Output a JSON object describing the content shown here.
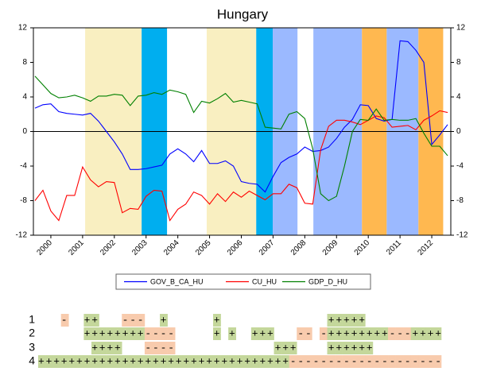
{
  "chart_data": {
    "type": "line",
    "title": "Hungary",
    "x": [
      1999.5,
      1999.75,
      2000,
      2000.25,
      2000.5,
      2000.75,
      2001,
      2001.25,
      2001.5,
      2001.75,
      2002,
      2002.25,
      2002.5,
      2002.75,
      2003,
      2003.25,
      2003.5,
      2003.75,
      2004,
      2004.25,
      2004.5,
      2004.75,
      2005,
      2005.25,
      2005.5,
      2005.75,
      2006,
      2006.25,
      2006.5,
      2006.75,
      2007,
      2007.25,
      2007.5,
      2007.75,
      2008,
      2008.25,
      2008.5,
      2008.75,
      2009,
      2009.25,
      2009.5,
      2009.75,
      2010,
      2010.25,
      2010.5,
      2010.75,
      2011,
      2011.25,
      2011.5,
      2011.75,
      2012,
      2012.25,
      2012.5
    ],
    "series": [
      {
        "name": "GOV_B_CA_HU",
        "color": "#0000ff",
        "values": [
          2.7,
          3.1,
          3.2,
          2.3,
          2.1,
          2.0,
          1.9,
          2.1,
          1.2,
          0.0,
          -1.2,
          -2.6,
          -4.4,
          -4.4,
          -4.3,
          -4.1,
          -3.9,
          -2.6,
          -2.0,
          -2.6,
          -3.5,
          -2.2,
          -3.7,
          -3.7,
          -3.4,
          -4.0,
          -5.8,
          -6.0,
          -6.1,
          -7.0,
          -5.2,
          -3.6,
          -3.0,
          -2.6,
          -1.8,
          -2.3,
          -2.2,
          -1.8,
          -0.8,
          0.5,
          1.4,
          3.1,
          3.0,
          1.5,
          1.2,
          1.4,
          10.5,
          10.4,
          9.4,
          8.0,
          -1.5,
          -0.4,
          0.8
        ]
      },
      {
        "name": "CU_HU",
        "color": "#ff0000",
        "values": [
          -8.0,
          -6.8,
          -9.2,
          -10.3,
          -7.4,
          -7.4,
          -4.1,
          -5.6,
          -6.4,
          -5.8,
          -5.9,
          -9.4,
          -8.9,
          -9.0,
          -7.5,
          -6.8,
          -6.9,
          -10.3,
          -9.0,
          -8.4,
          -7.0,
          -7.4,
          -8.4,
          -7.2,
          -8.1,
          -7.0,
          -7.6,
          -6.9,
          -7.4,
          -7.9,
          -7.2,
          -7.2,
          -6.1,
          -6.5,
          -8.3,
          -8.4,
          -2.1,
          0.6,
          1.3,
          1.3,
          1.1,
          0.8,
          1.3,
          1.8,
          1.6,
          0.5,
          0.6,
          0.7,
          0.2,
          1.3,
          1.8,
          2.4,
          2.2
        ]
      },
      {
        "name": "GDP_D_HU",
        "color": "#008000",
        "values": [
          6.4,
          5.4,
          4.4,
          3.9,
          4.0,
          4.2,
          3.9,
          3.5,
          4.1,
          4.1,
          4.3,
          4.2,
          3.0,
          4.1,
          4.2,
          4.5,
          4.3,
          4.8,
          4.6,
          4.3,
          2.2,
          3.5,
          3.3,
          3.8,
          4.4,
          3.4,
          3.6,
          3.4,
          3.2,
          0.5,
          0.4,
          0.3,
          2.0,
          2.3,
          1.5,
          -2.0,
          -7.2,
          -8.0,
          -7.5,
          -4.0,
          0.0,
          1.4,
          1.3,
          2.6,
          1.3,
          1.4,
          1.3,
          1.3,
          1.5,
          -0.2,
          -1.7,
          -1.7,
          -2.8
        ]
      }
    ],
    "bands": [
      {
        "start": 2001.08,
        "end": 2002.86,
        "color": "#f9efc1"
      },
      {
        "start": 2002.86,
        "end": 2003.66,
        "color": "#00aeef"
      },
      {
        "start": 2004.91,
        "end": 2006.47,
        "color": "#f9efc1"
      },
      {
        "start": 2006.47,
        "end": 2006.99,
        "color": "#00aeef"
      },
      {
        "start": 2006.99,
        "end": 2007.77,
        "color": "#9bb9ff"
      },
      {
        "start": 2008.27,
        "end": 2009.8,
        "color": "#9bb9ff"
      },
      {
        "start": 2009.8,
        "end": 2010.58,
        "color": "#ffb850"
      },
      {
        "start": 2010.58,
        "end": 2011.58,
        "color": "#9bb9ff"
      },
      {
        "start": 2011.58,
        "end": 2012.36,
        "color": "#ffb850"
      }
    ],
    "xlim": [
      1999.45,
      2012.6
    ],
    "xticks": [
      2000,
      2001,
      2002,
      2003,
      2004,
      2005,
      2006,
      2007,
      2008,
      2009,
      2010,
      2011,
      2012
    ],
    "ylim": [
      -12,
      12
    ],
    "yticks": [
      -12,
      -8,
      -4,
      0,
      4,
      8,
      12
    ],
    "y2lim": [
      -12,
      12
    ],
    "y2ticks": [
      -12,
      -8,
      -4,
      0,
      4,
      8,
      12
    ],
    "zero_line": true
  },
  "sign_table": {
    "colors": {
      "+": "#c4d79b",
      "-": "#f8cbad"
    },
    "rows": [
      {
        "label": "1",
        "signs": "   -  ++   ---  +      +              +++++          "
      },
      {
        "label": "2",
        "signs": "      ++++++++----     + +  +++   -- -++++++++---++++"
      },
      {
        "label": "3",
        "signs": "       ++++   ----             +++    ++++++         "
      },
      {
        "label": "4",
        "signs": "+++++++++++++++++++++++++++++++++--------------------"
      }
    ]
  }
}
